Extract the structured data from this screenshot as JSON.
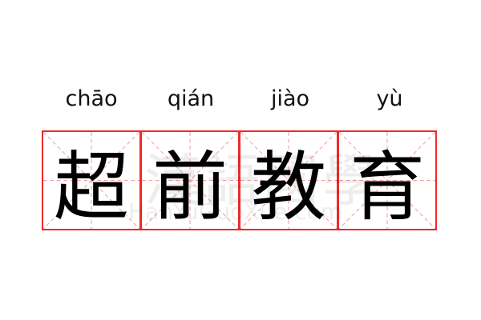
{
  "word": {
    "pinyin": [
      "chāo",
      "qián",
      "jiào",
      "yù"
    ],
    "characters": [
      "超",
      "前",
      "教",
      "育"
    ]
  },
  "watermark": {
    "chinese": "漢語國學",
    "site": "HanYuGuoXue.com"
  },
  "colors": {
    "grid_border": "#ee2a2a",
    "grid_guides": "#f4a0a0",
    "text": "#000000"
  }
}
